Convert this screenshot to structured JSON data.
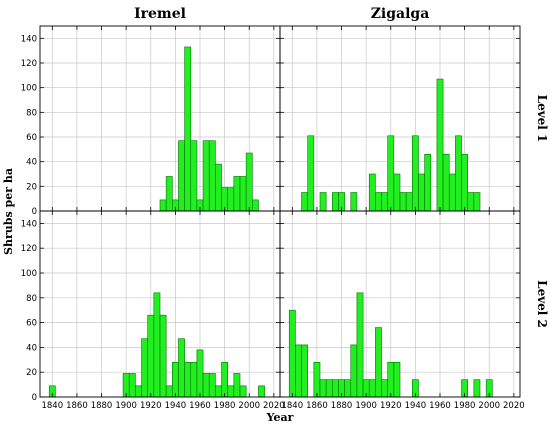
{
  "chart_data": {
    "type": "bar",
    "layout": "2x2 panel grid",
    "column_titles": [
      "Iremel",
      "Zigalga"
    ],
    "row_titles": [
      "Level 1",
      "Level 2"
    ],
    "xlabel": "Year",
    "ylabel": "Shrubs per ha",
    "xlim": [
      1830,
      2025
    ],
    "ylim": [
      0,
      150
    ],
    "xticks": [
      1840,
      1860,
      1880,
      1900,
      1920,
      1940,
      1960,
      1980,
      2000,
      2020
    ],
    "yticks": [
      0,
      20,
      40,
      60,
      80,
      100,
      120,
      140
    ],
    "bin_width": 5,
    "grid": true,
    "bar_color": "#22ee22",
    "bar_edge_color": "#007700",
    "panels": [
      {
        "column": "Iremel",
        "row": "Level 1",
        "x": [
          1930,
          1935,
          1940,
          1945,
          1950,
          1955,
          1960,
          1965,
          1970,
          1975,
          1980,
          1985,
          1990,
          1995,
          2000,
          2005
        ],
        "values": [
          9,
          28,
          9,
          57,
          133,
          57,
          9,
          57,
          57,
          38,
          19,
          19,
          28,
          28,
          47,
          9
        ]
      },
      {
        "column": "Zigalga",
        "row": "Level 1",
        "x": [
          1850,
          1855,
          1865,
          1875,
          1880,
          1890,
          1905,
          1910,
          1915,
          1920,
          1925,
          1930,
          1935,
          1940,
          1945,
          1950,
          1960,
          1965,
          1970,
          1975,
          1980,
          1985,
          1990
        ],
        "values": [
          15,
          61,
          15,
          15,
          15,
          15,
          30,
          15,
          15,
          61,
          30,
          15,
          15,
          61,
          30,
          46,
          107,
          46,
          30,
          61,
          46,
          15,
          15
        ]
      },
      {
        "column": "Iremel",
        "row": "Level 2",
        "x": [
          1840,
          1900,
          1905,
          1910,
          1915,
          1920,
          1925,
          1930,
          1935,
          1940,
          1945,
          1950,
          1955,
          1960,
          1965,
          1970,
          1975,
          1980,
          1985,
          1990,
          1995,
          2010
        ],
        "values": [
          9,
          19,
          19,
          9,
          47,
          66,
          84,
          66,
          9,
          28,
          47,
          28,
          28,
          38,
          19,
          19,
          9,
          28,
          9,
          19,
          9,
          9
        ]
      },
      {
        "column": "Zigalga",
        "row": "Level 2",
        "x": [
          1840,
          1845,
          1850,
          1860,
          1865,
          1870,
          1875,
          1880,
          1885,
          1890,
          1895,
          1900,
          1905,
          1910,
          1915,
          1920,
          1925,
          1940,
          1980,
          1990,
          2000
        ],
        "values": [
          70,
          42,
          42,
          28,
          14,
          14,
          14,
          14,
          14,
          42,
          84,
          14,
          14,
          56,
          14,
          28,
          28,
          14,
          14,
          14,
          14
        ]
      }
    ]
  }
}
